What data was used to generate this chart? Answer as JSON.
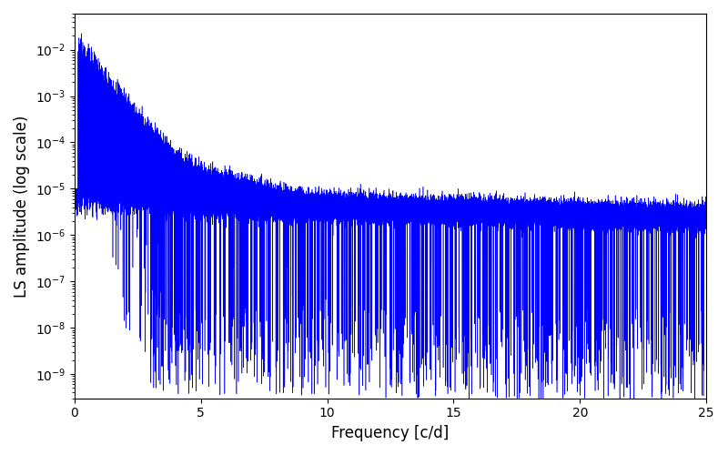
{
  "title": "",
  "xlabel": "Frequency [c/d]",
  "ylabel": "LS amplitude (log scale)",
  "xlim": [
    0,
    25
  ],
  "ylim_log": [
    3e-10,
    0.06
  ],
  "color": "#0000ff",
  "linewidth": 0.4,
  "figsize": [
    8.0,
    5.0
  ],
  "dpi": 100,
  "freq_max": 25.0,
  "n_points": 50000,
  "seed": 42
}
